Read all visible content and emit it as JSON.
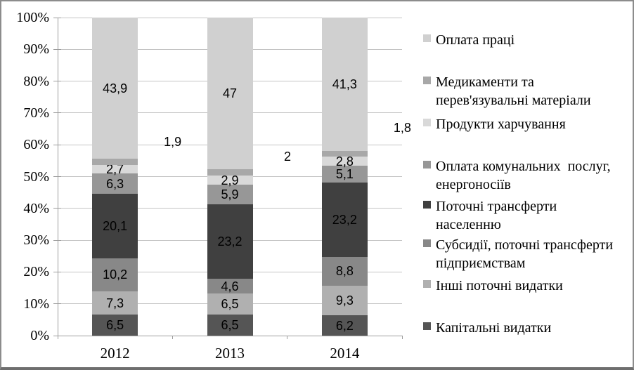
{
  "chart_data": {
    "type": "bar",
    "subtype": "stacked-100-percent",
    "title": "",
    "xlabel": "",
    "ylabel": "",
    "categories": [
      "2012",
      "2013",
      "2014"
    ],
    "series": [
      {
        "name": "Капітальні видатки",
        "color": "#555555",
        "values": [
          6.5,
          6.5,
          6.2
        ],
        "labels": [
          "6,5",
          "6,5",
          "6,2"
        ]
      },
      {
        "name": "Інші поточні видатки",
        "color": "#b0b0b0",
        "values": [
          7.3,
          6.5,
          9.3
        ],
        "labels": [
          "7,3",
          "6,5",
          "9,3"
        ]
      },
      {
        "name": "Субсидії, поточні трансферти підприємствам",
        "color": "#888888",
        "values": [
          10.2,
          4.6,
          8.8
        ],
        "labels": [
          "10,2",
          "4,6",
          "8,8"
        ]
      },
      {
        "name": "Поточні трансферти населенню",
        "color": "#404040",
        "values": [
          20.1,
          23.2,
          23.2
        ],
        "labels": [
          "20,1",
          "23,2",
          "23,2"
        ]
      },
      {
        "name": "Оплата комунальних послуг, енергоносіїв",
        "color": "#979797",
        "values": [
          6.3,
          5.9,
          5.1
        ],
        "labels": [
          "6,3",
          "5,9",
          "5,1"
        ]
      },
      {
        "name": "Продукти харчування",
        "color": "#d9d9d9",
        "values": [
          2.7,
          2.9,
          2.8
        ],
        "labels": [
          "2,7",
          "2,9",
          "2,8"
        ]
      },
      {
        "name": "Медикаменти та перев'язувальні матеріали",
        "color": "#a8a8a8",
        "values": [
          1.9,
          2.0,
          1.8
        ],
        "labels": [
          "1,9",
          "2",
          "1,8"
        ],
        "label_outside": true
      },
      {
        "name": "Оплата праці",
        "color": "#d0d0d0",
        "values": [
          43.9,
          47.0,
          41.3
        ],
        "labels": [
          "43,9",
          "47",
          "41,3"
        ]
      }
    ],
    "y_axis": {
      "min": 0,
      "max": 100,
      "tick_step": 10,
      "tick_labels": [
        "0%",
        "10%",
        "20%",
        "30%",
        "40%",
        "50%",
        "60%",
        "70%",
        "80%",
        "90%",
        "100%"
      ]
    },
    "grid": true,
    "grid_color": "#c4c4c4",
    "axis_color": "#9d9d9d",
    "legend": {
      "position": "right",
      "items_top_to_bottom": [
        {
          "series": "Оплата праці",
          "lines": [
            "Оплата праці"
          ]
        },
        {
          "series": "Медикаменти та перев'язувальні матеріали",
          "lines": [
            "Медикаменти та",
            "перев'язувальні матеріали"
          ]
        },
        {
          "series": "Продукти харчування",
          "lines": [
            "Продукти харчування"
          ]
        },
        {
          "series": "Оплата комунальних послуг, енергоносіїв",
          "lines": [
            "Оплата комунальних  послуг,",
            "енергоносіїв"
          ]
        },
        {
          "series": "Поточні трансферти населенню",
          "lines": [
            "Поточні трансферти",
            "населенню"
          ]
        },
        {
          "series": "Субсидії, поточні трансферти підприємствам",
          "lines": [
            "Субсидії, поточні трансферти",
            "підприємствам"
          ]
        },
        {
          "series": "Інші поточні видатки",
          "lines": [
            "Інші поточні видатки"
          ]
        },
        {
          "series": "Капітальні видатки",
          "lines": [
            "Капітальні видатки"
          ]
        }
      ]
    }
  }
}
